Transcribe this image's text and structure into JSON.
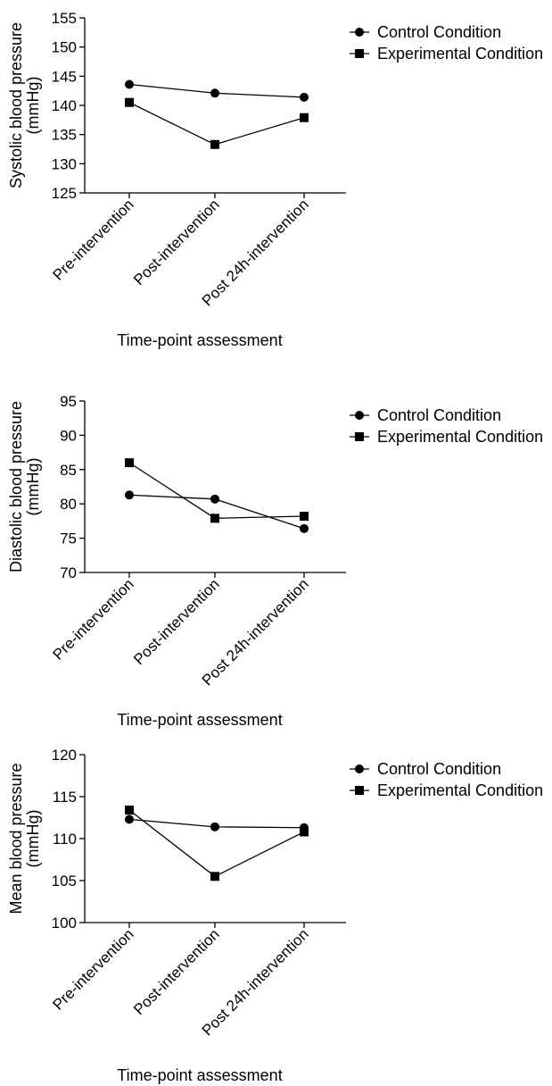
{
  "chart_data": [
    {
      "type": "line",
      "ylabel": [
        "Systolic blood pressure",
        "(mmHg)"
      ],
      "xlabel": "Time-point assessment",
      "categories": [
        "Pre-intervention",
        "Post-intervention",
        "Post 24h-intervention"
      ],
      "ylim": [
        125,
        155
      ],
      "yticks": [
        125,
        130,
        135,
        140,
        145,
        150,
        155
      ],
      "legend": "top-right",
      "series": [
        {
          "name": "Control Condition",
          "marker": "circle",
          "values": [
            143.6,
            142.1,
            141.4
          ]
        },
        {
          "name": "Experimental Condition",
          "marker": "square",
          "values": [
            140.5,
            133.3,
            137.9
          ]
        }
      ]
    },
    {
      "type": "line",
      "ylabel": [
        "Diastolic blood pressure",
        "(mmHg)"
      ],
      "xlabel": "Time-point assessment",
      "categories": [
        "Pre-intervention",
        "Post-intervention",
        "Post 24h-intervention"
      ],
      "ylim": [
        70,
        95
      ],
      "yticks": [
        70,
        75,
        80,
        85,
        90,
        95
      ],
      "legend": "top-right",
      "series": [
        {
          "name": "Control Condition",
          "marker": "circle",
          "values": [
            81.3,
            80.7,
            76.4
          ]
        },
        {
          "name": "Experimental Condition",
          "marker": "square",
          "values": [
            86.0,
            77.9,
            78.2
          ]
        }
      ]
    },
    {
      "type": "line",
      "ylabel": [
        "Mean blood pressure",
        "(mmHg)"
      ],
      "xlabel": "Time-point assessment",
      "categories": [
        "Pre-intervention",
        "Post-intervention",
        "Post 24h-intervention"
      ],
      "ylim": [
        100,
        120
      ],
      "yticks": [
        100,
        105,
        110,
        115,
        120
      ],
      "legend": "top-right",
      "series": [
        {
          "name": "Control Condition",
          "marker": "circle",
          "values": [
            112.3,
            111.4,
            111.3
          ]
        },
        {
          "name": "Experimental Condition",
          "marker": "square",
          "values": [
            113.4,
            105.5,
            110.8
          ]
        }
      ]
    }
  ]
}
